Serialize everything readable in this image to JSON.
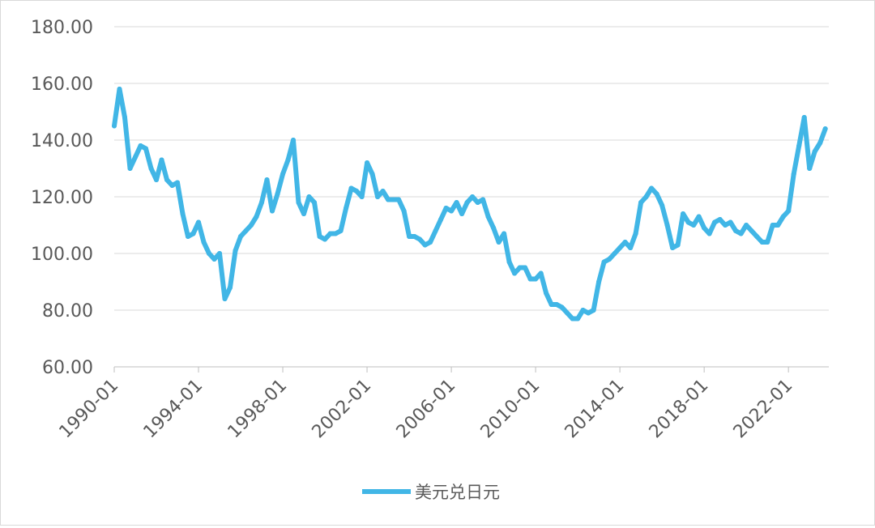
{
  "chart_data": {
    "type": "line",
    "title": "",
    "xlabel": "",
    "ylabel": "",
    "ylim": [
      60,
      180
    ],
    "xlim": [
      "1990-01",
      "2023-12"
    ],
    "y_ticks": [
      "60.00",
      "80.00",
      "100.00",
      "120.00",
      "140.00",
      "160.00",
      "180.00"
    ],
    "x_ticks": [
      "1990-01",
      "1994-01",
      "1998-01",
      "2002-01",
      "2006-01",
      "2010-01",
      "2014-01",
      "2018-01",
      "2022-01"
    ],
    "grid": "horizontal",
    "legend": "bottom",
    "line_color": "#41b6e6",
    "series": [
      {
        "name": "美元兑日元",
        "x": [
          "1990-01",
          "1990-04",
          "1990-07",
          "1990-10",
          "1991-01",
          "1991-04",
          "1991-07",
          "1991-10",
          "1992-01",
          "1992-04",
          "1992-07",
          "1992-10",
          "1993-01",
          "1993-04",
          "1993-07",
          "1993-10",
          "1994-01",
          "1994-04",
          "1994-07",
          "1994-10",
          "1995-01",
          "1995-04",
          "1995-07",
          "1995-10",
          "1996-01",
          "1996-04",
          "1996-07",
          "1996-10",
          "1997-01",
          "1997-04",
          "1997-07",
          "1997-10",
          "1998-01",
          "1998-04",
          "1998-07",
          "1998-10",
          "1999-01",
          "1999-04",
          "1999-07",
          "1999-10",
          "2000-01",
          "2000-04",
          "2000-07",
          "2000-10",
          "2001-01",
          "2001-04",
          "2001-07",
          "2001-10",
          "2002-01",
          "2002-04",
          "2002-07",
          "2002-10",
          "2003-01",
          "2003-04",
          "2003-07",
          "2003-10",
          "2004-01",
          "2004-04",
          "2004-07",
          "2004-10",
          "2005-01",
          "2005-04",
          "2005-07",
          "2005-10",
          "2006-01",
          "2006-04",
          "2006-07",
          "2006-10",
          "2007-01",
          "2007-04",
          "2007-07",
          "2007-10",
          "2008-01",
          "2008-04",
          "2008-07",
          "2008-10",
          "2009-01",
          "2009-04",
          "2009-07",
          "2009-10",
          "2010-01",
          "2010-04",
          "2010-07",
          "2010-10",
          "2011-01",
          "2011-04",
          "2011-07",
          "2011-10",
          "2012-01",
          "2012-04",
          "2012-07",
          "2012-10",
          "2013-01",
          "2013-04",
          "2013-07",
          "2013-10",
          "2014-01",
          "2014-04",
          "2014-07",
          "2014-10",
          "2015-01",
          "2015-04",
          "2015-07",
          "2015-10",
          "2016-01",
          "2016-04",
          "2016-07",
          "2016-10",
          "2017-01",
          "2017-04",
          "2017-07",
          "2017-10",
          "2018-01",
          "2018-04",
          "2018-07",
          "2018-10",
          "2019-01",
          "2019-04",
          "2019-07",
          "2019-10",
          "2020-01",
          "2020-04",
          "2020-07",
          "2020-10",
          "2021-01",
          "2021-04",
          "2021-07",
          "2021-10",
          "2022-01",
          "2022-04",
          "2022-07",
          "2022-10",
          "2023-01",
          "2023-04",
          "2023-07",
          "2023-10"
        ],
        "values": [
          145,
          158,
          148,
          130,
          134,
          138,
          137,
          130,
          126,
          133,
          126,
          124,
          125,
          114,
          106,
          107,
          111,
          104,
          100,
          98,
          100,
          84,
          88,
          101,
          106,
          108,
          110,
          113,
          118,
          126,
          115,
          121,
          128,
          133,
          140,
          118,
          114,
          120,
          118,
          106,
          105,
          107,
          107,
          108,
          116,
          123,
          122,
          120,
          132,
          128,
          120,
          122,
          119,
          119,
          119,
          115,
          106,
          106,
          105,
          103,
          104,
          108,
          112,
          116,
          115,
          118,
          114,
          118,
          120,
          118,
          119,
          113,
          109,
          104,
          107,
          97,
          93,
          95,
          95,
          91,
          91,
          93,
          86,
          82,
          82,
          81,
          79,
          77,
          77,
          80,
          79,
          80,
          90,
          97,
          98,
          100,
          102,
          104,
          102,
          107,
          118,
          120,
          123,
          121,
          117,
          110,
          102,
          103,
          114,
          111,
          110,
          113,
          109,
          107,
          111,
          112,
          110,
          111,
          108,
          107,
          110,
          108,
          106,
          104,
          104,
          110,
          110,
          113,
          115,
          128,
          138,
          148,
          130,
          136,
          139,
          144
        ]
      }
    ]
  }
}
